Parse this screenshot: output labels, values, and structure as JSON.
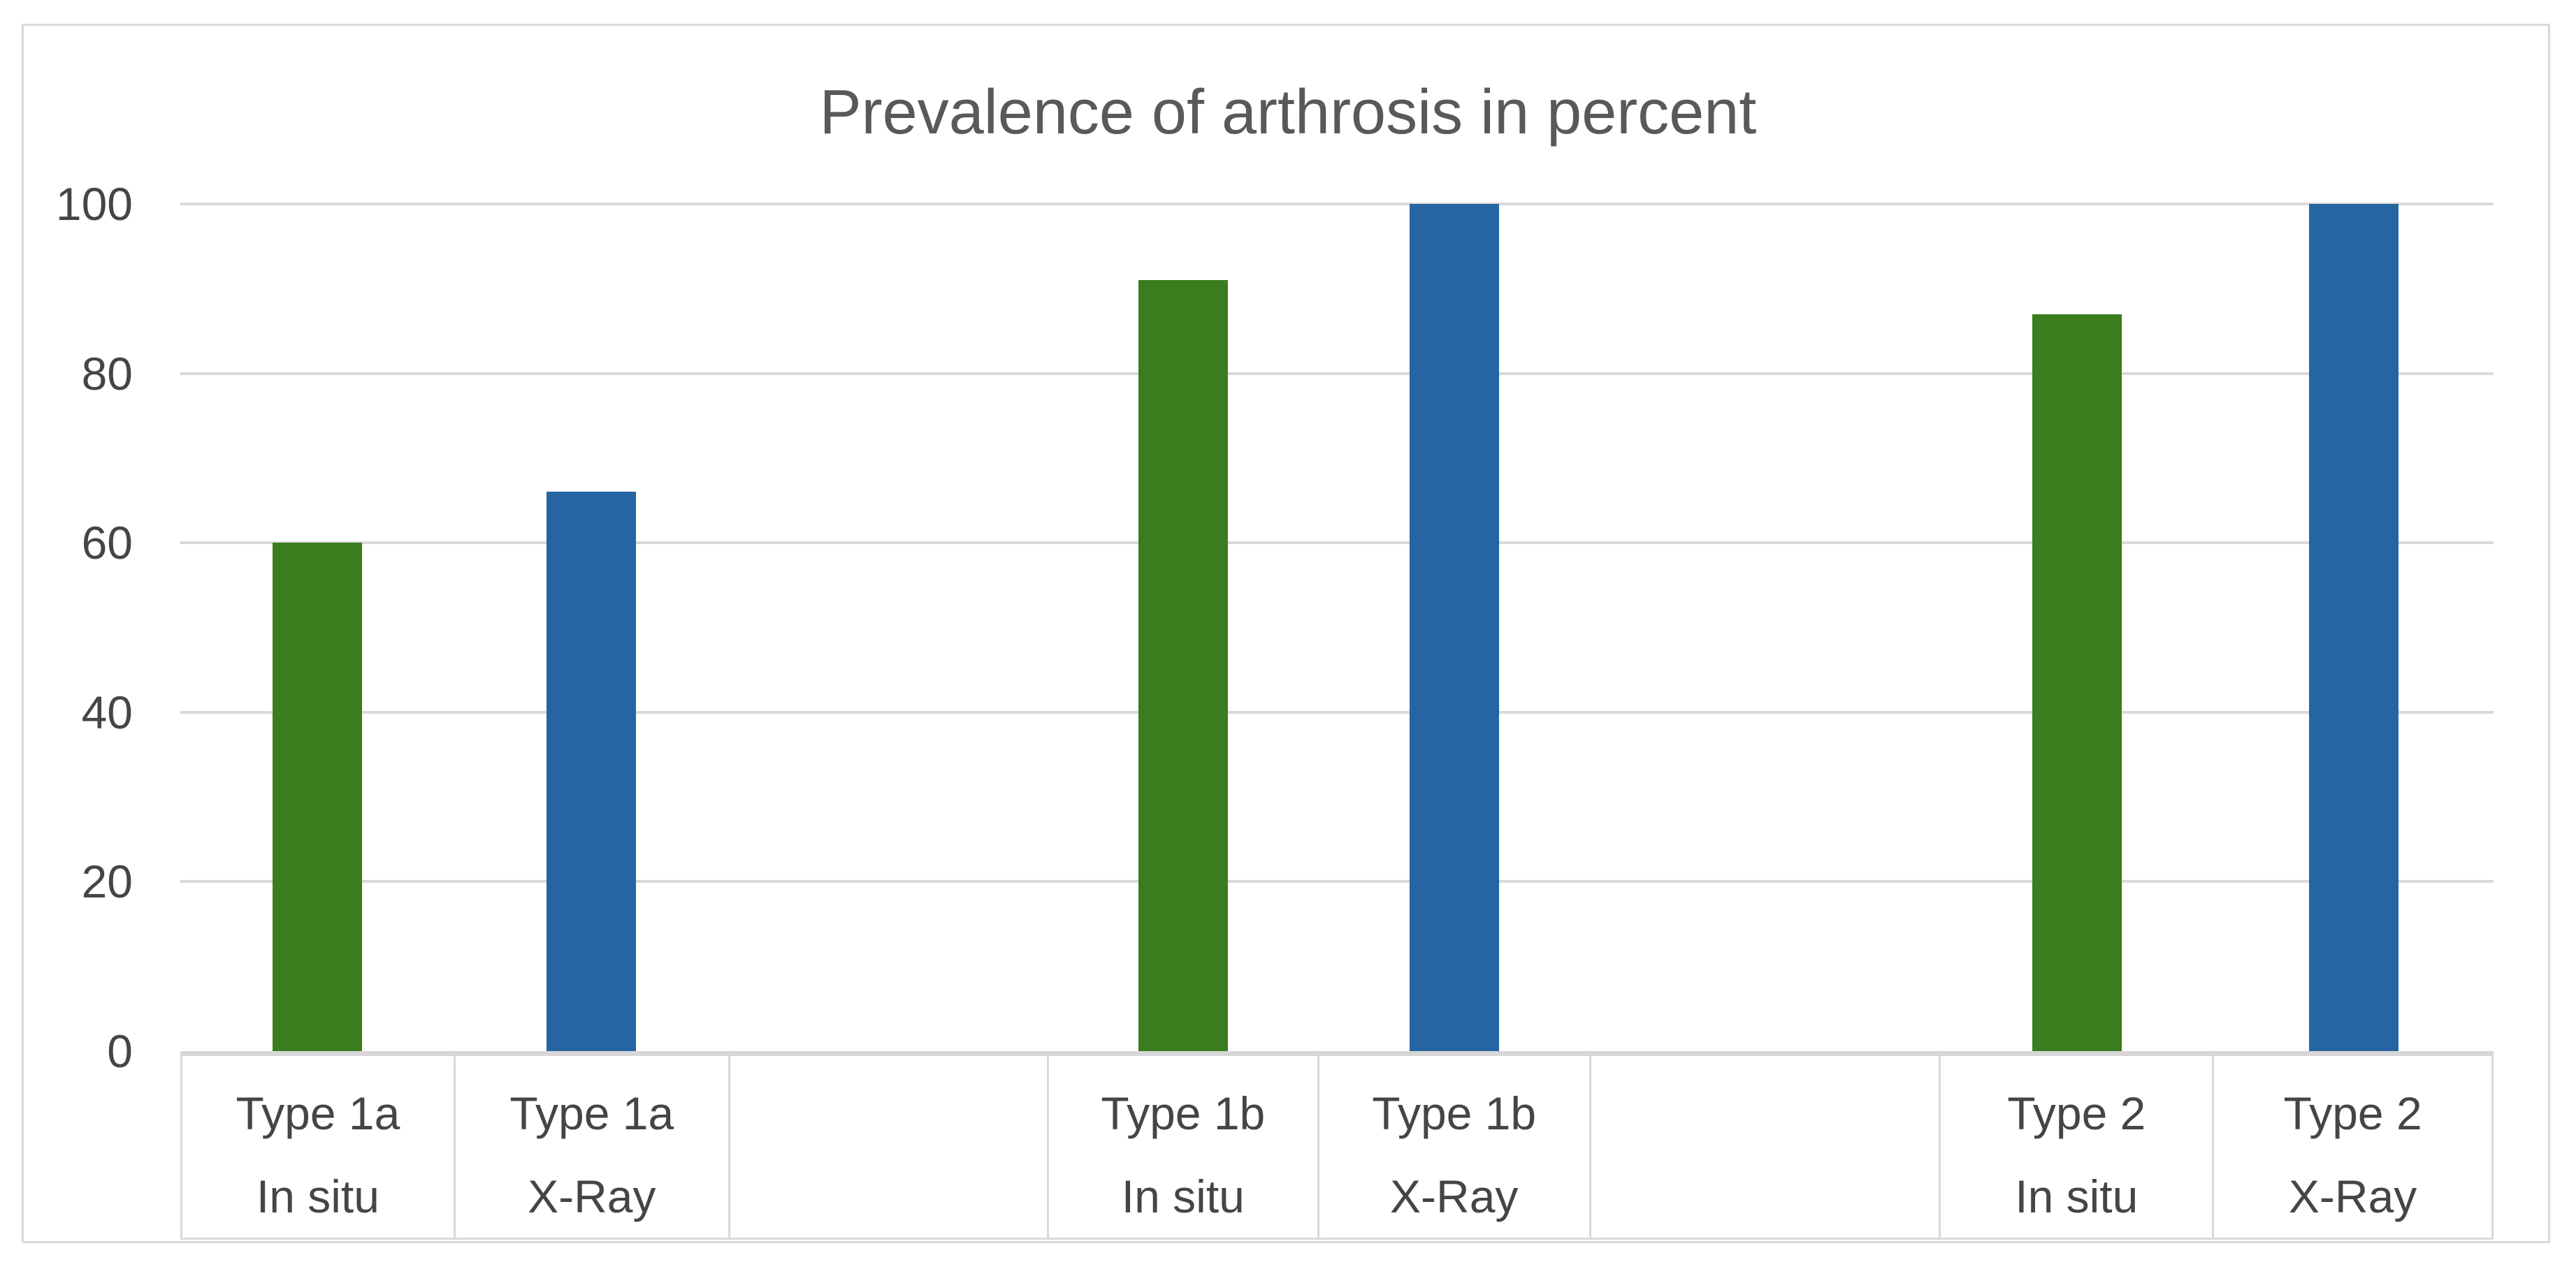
{
  "colors": {
    "in_situ_green": "#3a7d1f",
    "x_ray_blue": "#2565a2",
    "gridline": "#d9d9d9",
    "axis_line": "#d7d7d7",
    "frame_border": "#d9d9d9",
    "title_text": "#595959",
    "tick_text": "#454545",
    "background": "#ffffff"
  },
  "chart_data": {
    "type": "bar",
    "title": "Prevalence of arthrosis in percent",
    "categories": [
      "Type 1a",
      "Type 1b",
      "Type 2"
    ],
    "series": [
      {
        "name": "In situ",
        "color": "#3a7d1f",
        "values": [
          60,
          91,
          87
        ]
      },
      {
        "name": "X-Ray",
        "color": "#2565a2",
        "values": [
          66,
          100,
          100
        ]
      }
    ],
    "xlabel": "",
    "ylabel": "",
    "ylim": [
      0,
      100
    ],
    "y_ticks": [
      0,
      20,
      40,
      60,
      80,
      100
    ],
    "grid": true,
    "legend_position": "none",
    "axis_label_rows": 2,
    "columns": [
      {
        "top_label": "Type 1a",
        "bottom_label": "In situ",
        "series": "In situ",
        "value": 60,
        "rel_width": 392
      },
      {
        "top_label": "Type 1a",
        "bottom_label": "X-Ray",
        "series": "X-Ray",
        "value": 66,
        "rel_width": 394
      },
      {
        "top_label": "",
        "bottom_label": "",
        "series": null,
        "value": null,
        "rel_width": 458
      },
      {
        "top_label": "Type 1b",
        "bottom_label": "In situ",
        "series": "In situ",
        "value": 91,
        "rel_width": 388
      },
      {
        "top_label": "Type 1b",
        "bottom_label": "X-Ray",
        "series": "X-Ray",
        "value": 100,
        "rel_width": 390
      },
      {
        "top_label": "",
        "bottom_label": "",
        "series": null,
        "value": null,
        "rel_width": 503
      },
      {
        "top_label": "Type 2",
        "bottom_label": "In situ",
        "series": "In situ",
        "value": 87,
        "rel_width": 392
      },
      {
        "top_label": "Type 2",
        "bottom_label": "X-Ray",
        "series": "X-Ray",
        "value": 100,
        "rel_width": 401
      }
    ]
  }
}
